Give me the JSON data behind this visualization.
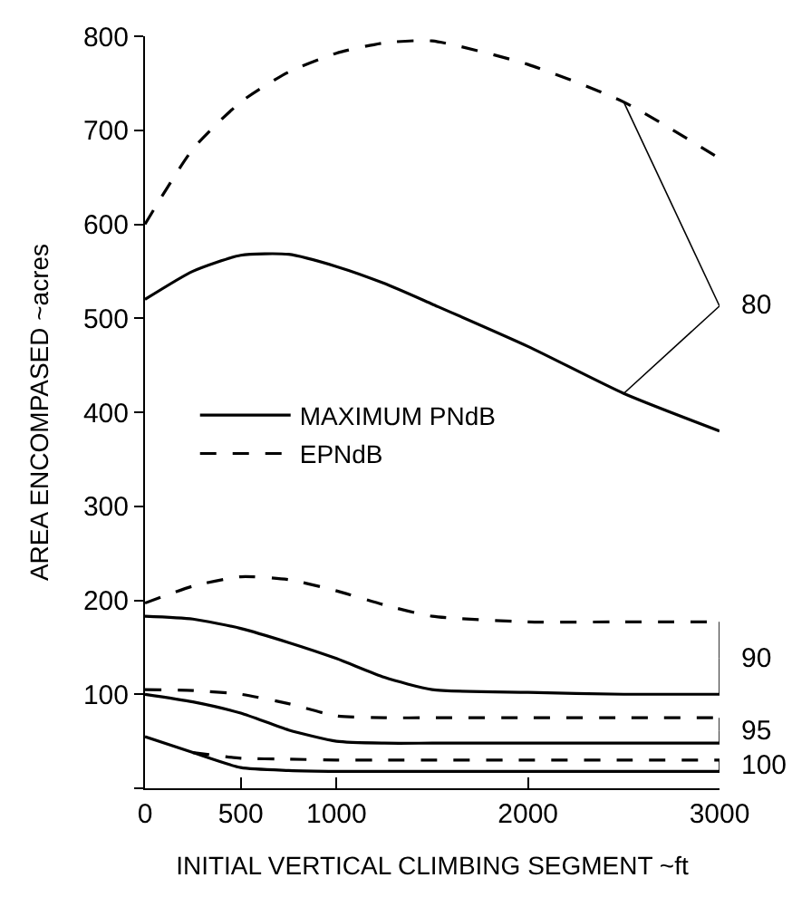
{
  "chart_data": {
    "type": "line",
    "xlabel": "INITIAL VERTICAL CLIMBING SEGMENT ~ft",
    "ylabel": "AREA ENCOMPASED ~acres",
    "xlim": [
      0,
      3000
    ],
    "xticks": [
      0,
      500,
      1000,
      2000,
      3000
    ],
    "ylim": [
      0,
      800
    ],
    "yticks": [
      {
        "value": 0,
        "label": null
      },
      100,
      200,
      300,
      400,
      500,
      600,
      700,
      800
    ],
    "legend": "left",
    "marker": "none",
    "x": [
      0,
      250,
      500,
      750,
      1000,
      1250,
      1500,
      2000,
      2500,
      3000
    ],
    "series": [
      {
        "name": "MAXIMUM PNdB",
        "color": "#000000",
        "line_style": "solid",
        "values": [
          520,
          550,
          567,
          568,
          555,
          537,
          515,
          470,
          420,
          380
        ]
      },
      {
        "name": "EPNdB",
        "color": "#000000",
        "line_style": "dashed",
        "values": [
          600,
          680,
          730,
          762,
          782,
          793,
          795,
          770,
          730,
          670
        ]
      },
      {
        "color": "#000000",
        "line_style": "dashed",
        "values": [
          197,
          215,
          225,
          222,
          210,
          195,
          183,
          177,
          177,
          177
        ]
      },
      {
        "color": "#000000",
        "line_style": "solid",
        "values": [
          183,
          180,
          170,
          155,
          138,
          118,
          105,
          102,
          100,
          100
        ]
      },
      {
        "color": "#000000",
        "line_style": "dashed",
        "values": [
          105,
          104,
          100,
          90,
          77,
          75,
          75,
          75,
          75,
          75
        ]
      },
      {
        "color": "#000000",
        "line_style": "solid",
        "values": [
          100,
          92,
          80,
          62,
          50,
          48,
          48,
          48,
          48,
          48
        ]
      },
      {
        "color": "#000000",
        "line_style": "solid",
        "values": [
          55,
          38,
          22,
          19,
          18,
          18,
          18,
          18,
          18,
          18
        ]
      },
      {
        "color": "#000000",
        "line_style": "dashed",
        "values": [
          null,
          38,
          32,
          31,
          30,
          30,
          30,
          30,
          30,
          30
        ]
      }
    ],
    "annotations": [
      {
        "text": "80",
        "x": 2500,
        "y": 730
      },
      "90",
      "95",
      "100"
    ]
  }
}
